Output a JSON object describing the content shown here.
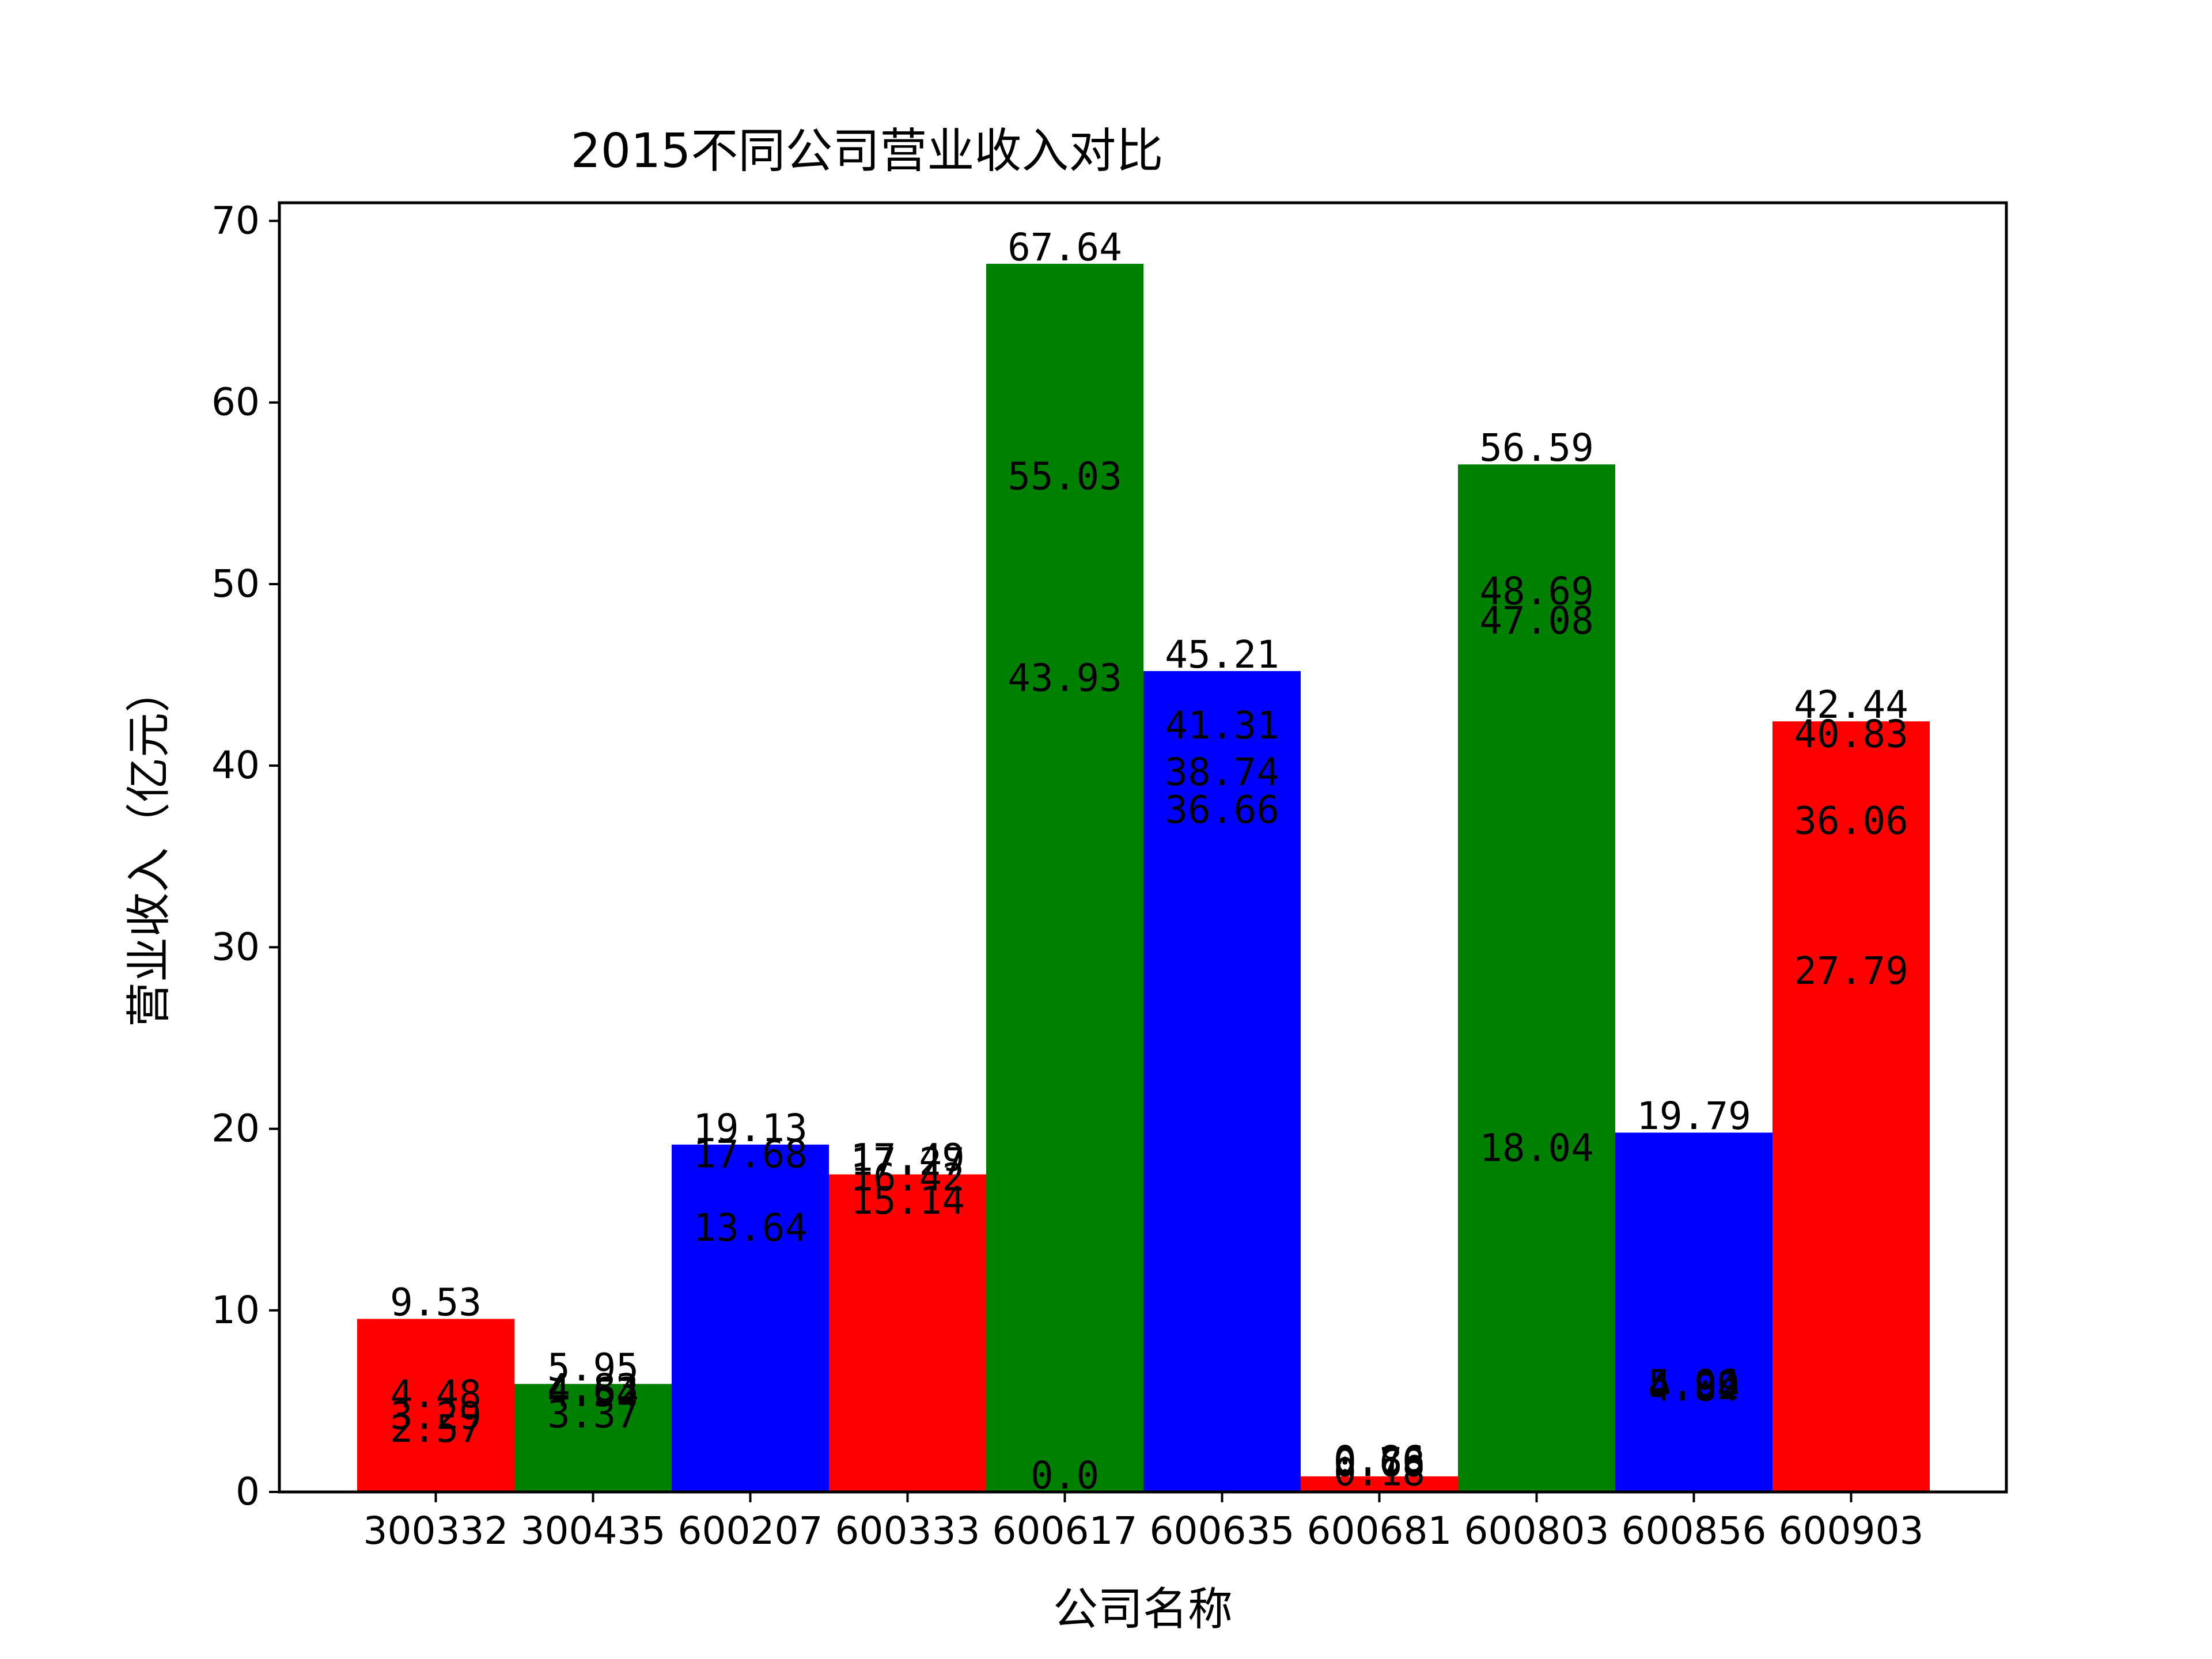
{
  "chart_data": {
    "type": "bar",
    "title": "2015不同公司营业收入对比",
    "xlabel": "公司名称",
    "ylabel": "营业收入（亿元）",
    "ylim": [
      0,
      71
    ],
    "yticks": [
      0,
      10,
      20,
      30,
      40,
      50,
      60,
      70
    ],
    "categories": [
      "300332",
      "300435",
      "600207",
      "600333",
      "600617",
      "600635",
      "600681",
      "600803",
      "600856",
      "600903"
    ],
    "values": [
      9.53,
      5.95,
      19.13,
      17.49,
      67.64,
      45.21,
      0.86,
      56.59,
      19.79,
      42.44
    ],
    "bar_colors": [
      "#ff0000",
      "#008000",
      "#0000ff",
      "#ff0000",
      "#008000",
      "#0000ff",
      "#ff0000",
      "#008000",
      "#0000ff",
      "#ff0000"
    ],
    "annotations": [
      [
        "9.53",
        "4.48",
        "3.29",
        "2.57"
      ],
      [
        "5.95",
        "4.83",
        "4.62",
        "4.54",
        "3.37"
      ],
      [
        "19.13",
        "17.68",
        "13.64"
      ],
      [
        "17.49",
        "17.27",
        "16.42",
        "15.14"
      ],
      [
        "67.64",
        "55.03",
        "43.93",
        "0.0"
      ],
      [
        "45.21",
        "41.31",
        "38.74",
        "36.66"
      ],
      [
        "0.86",
        "0.76",
        "0.68",
        "0.18"
      ],
      [
        "56.59",
        "48.69",
        "47.08",
        "18.04"
      ],
      [
        "19.79",
        "5.06",
        "4.99",
        "4.92",
        "4.84"
      ],
      [
        "42.44",
        "40.83",
        "36.06",
        "27.79"
      ]
    ],
    "grid": false,
    "legend": "none"
  }
}
